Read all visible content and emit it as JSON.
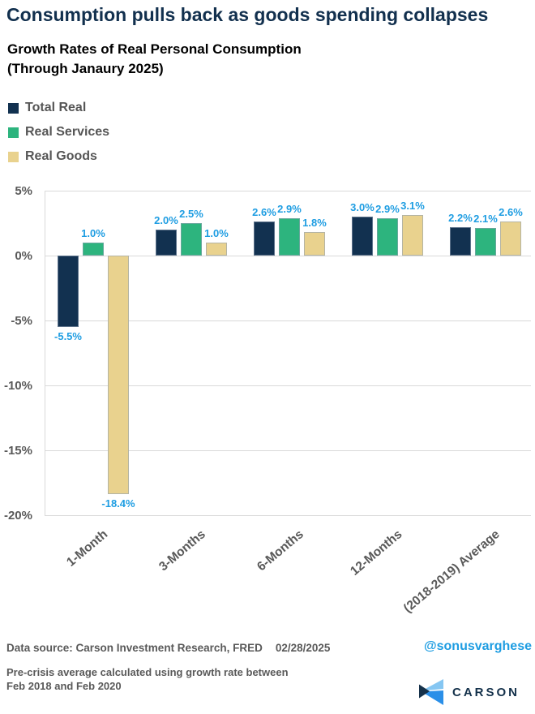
{
  "header": {
    "title": "Consumption pulls back as goods spending collapses",
    "subtitle_line1": "Growth Rates of Real Personal Consumption",
    "subtitle_line2": "(Through Janaury 2025)"
  },
  "chart_data": {
    "type": "bar",
    "title": "Growth Rates of Real Personal Consumption (Through Janaury 2025)",
    "categories": [
      "1-Month",
      "3-Months",
      "6-Months",
      "12-Months",
      "(2018-2019) Average"
    ],
    "series": [
      {
        "name": "Total Real",
        "color": "#123150",
        "values": [
          -5.5,
          2.0,
          2.6,
          3.0,
          2.2
        ]
      },
      {
        "name": "Real Services",
        "color": "#2db47e",
        "values": [
          1.0,
          2.5,
          2.9,
          2.9,
          2.1
        ]
      },
      {
        "name": "Real Goods",
        "color": "#e9d28e",
        "values": [
          -18.4,
          1.0,
          1.8,
          3.1,
          2.6
        ]
      }
    ],
    "value_label_color": "#1e9de2",
    "value_label_suffix": "%",
    "ylim": [
      -20,
      5
    ],
    "yticks": [
      5,
      0,
      -5,
      -10,
      -15,
      -20
    ],
    "ytick_suffix": "%",
    "grid": true,
    "legend_position": "top-left"
  },
  "footer": {
    "data_source": "Data source: Carson Investment Research, FRED",
    "date": "02/28/2025",
    "handle": "@sonusvarghese",
    "note_line1": "Pre-crisis average calculated using growth rate between",
    "note_line2": "Feb 2018 and Feb 2020",
    "brand": "CARSON"
  },
  "colors": {
    "title_navy": "#12304e",
    "text_gray": "#595959",
    "value_label_blue": "#1e9de2",
    "gridline": "#d9d9d9",
    "brand_navy": "#16314a",
    "brand_blue": "#2a8fe8",
    "brand_light_blue": "#85c6f2"
  }
}
